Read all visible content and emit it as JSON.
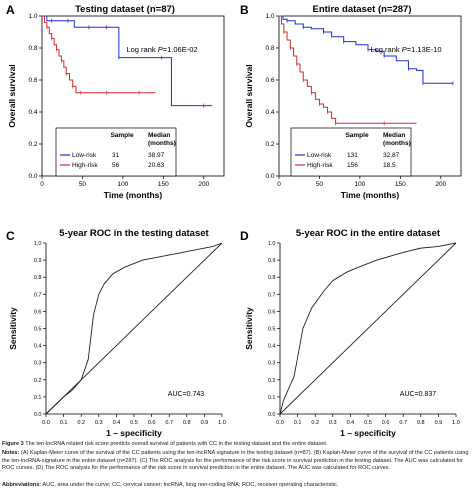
{
  "chart_data": [
    {
      "type": "line",
      "panel_label": "A",
      "title": "Testing dataset (n=87)",
      "xlabel": "Time (months)",
      "ylabel": "Overall survival",
      "xlim": [
        0,
        225
      ],
      "ylim": [
        0,
        1.0
      ],
      "xticks": [
        "0",
        "50",
        "100",
        "150",
        "200"
      ],
      "yticks": [
        "0.0",
        "0.2",
        "0.4",
        "0.6",
        "0.8",
        "1.0"
      ],
      "annotation": "Log rank P=1.06E-02",
      "table_headers": [
        "Sample",
        "Median (months)"
      ],
      "series": [
        {
          "name": "Low-risk",
          "color": "#1f2fd6",
          "sample": "31",
          "median": "38.97",
          "x": [
            0,
            6,
            12,
            20,
            32,
            40,
            58,
            70,
            80,
            92,
            95,
            120,
            148,
            160,
            200,
            210
          ],
          "y": [
            1.0,
            0.97,
            0.97,
            0.97,
            0.97,
            0.93,
            0.93,
            0.93,
            0.93,
            0.93,
            0.74,
            0.74,
            0.74,
            0.44,
            0.44,
            0.44
          ]
        },
        {
          "name": "High-risk",
          "color": "#d42b2b",
          "sample": "56",
          "median": "20.63",
          "x": [
            0,
            3,
            6,
            9,
            12,
            15,
            18,
            21,
            24,
            27,
            30,
            34,
            38,
            42,
            48,
            60,
            80,
            100,
            120,
            140
          ],
          "y": [
            1.0,
            0.96,
            0.93,
            0.89,
            0.86,
            0.82,
            0.79,
            0.75,
            0.72,
            0.68,
            0.64,
            0.6,
            0.56,
            0.52,
            0.52,
            0.52,
            0.52,
            0.52,
            0.52,
            0.52
          ]
        }
      ]
    },
    {
      "type": "line",
      "panel_label": "B",
      "title": "Entire dataset (n=287)",
      "xlabel": "Time (months)",
      "ylabel": "Overall survival",
      "xlim": [
        0,
        225
      ],
      "ylim": [
        0,
        1.0
      ],
      "xticks": [
        "0",
        "50",
        "100",
        "150",
        "200"
      ],
      "yticks": [
        "0.0",
        "0.2",
        "0.4",
        "0.6",
        "0.8",
        "1.0"
      ],
      "annotation": "Log rank P=1.13E-10",
      "table_headers": [
        "Sample",
        "Median (months)"
      ],
      "series": [
        {
          "name": "Low-risk",
          "color": "#1f2fd6",
          "sample": "131",
          "median": "32.87",
          "x": [
            0,
            5,
            10,
            20,
            30,
            40,
            55,
            65,
            80,
            95,
            110,
            120,
            130,
            145,
            160,
            170,
            178,
            210,
            215
          ],
          "y": [
            1.0,
            0.98,
            0.97,
            0.95,
            0.93,
            0.92,
            0.9,
            0.87,
            0.84,
            0.82,
            0.79,
            0.78,
            0.75,
            0.72,
            0.67,
            0.66,
            0.58,
            0.58,
            0.58
          ]
        },
        {
          "name": "High-risk",
          "color": "#d42b2b",
          "sample": "156",
          "median": "18.5",
          "x": [
            0,
            3,
            6,
            10,
            14,
            18,
            22,
            26,
            30,
            35,
            40,
            45,
            50,
            55,
            60,
            65,
            70,
            100,
            130,
            170
          ],
          "y": [
            1.0,
            0.95,
            0.9,
            0.85,
            0.8,
            0.75,
            0.7,
            0.65,
            0.6,
            0.56,
            0.52,
            0.48,
            0.45,
            0.43,
            0.4,
            0.36,
            0.33,
            0.33,
            0.33,
            0.33
          ]
        }
      ]
    },
    {
      "type": "line",
      "panel_label": "C",
      "title": "5-year ROC in the testing dataset",
      "xlabel": "1 – specificity",
      "ylabel": "Sensitivity",
      "xlim": [
        0,
        1.0
      ],
      "ylim": [
        0,
        1.0
      ],
      "xticks": [
        "0.0",
        "0.1",
        "0.2",
        "0.3",
        "0.4",
        "0.5",
        "0.6",
        "0.7",
        "0.8",
        "0.9",
        "1.0"
      ],
      "yticks": [
        "0.0",
        "0.1",
        "0.2",
        "0.3",
        "0.4",
        "0.5",
        "0.6",
        "0.7",
        "0.8",
        "0.9",
        "1.0"
      ],
      "annotation": "AUC=0.743",
      "series": [
        {
          "color": "#222222",
          "x": [
            0.0,
            0.03,
            0.06,
            0.1,
            0.15,
            0.2,
            0.24,
            0.27,
            0.3,
            0.33,
            0.38,
            0.45,
            0.55,
            0.65,
            0.75,
            0.85,
            0.95,
            1.0
          ],
          "y": [
            0.0,
            0.03,
            0.06,
            0.1,
            0.14,
            0.2,
            0.32,
            0.58,
            0.7,
            0.76,
            0.82,
            0.86,
            0.9,
            0.92,
            0.94,
            0.96,
            0.98,
            1.0
          ]
        },
        {
          "color": "#222222",
          "x": [
            0,
            1
          ],
          "y": [
            0,
            1
          ]
        }
      ]
    },
    {
      "type": "line",
      "panel_label": "D",
      "title": "5-year ROC in the entire dataset",
      "xlabel": "1 – specificity",
      "ylabel": "Sensitivity",
      "xlim": [
        0,
        1.0
      ],
      "ylim": [
        0,
        1.0
      ],
      "xticks": [
        "0.0",
        "0.1",
        "0.2",
        "0.3",
        "0.4",
        "0.5",
        "0.6",
        "0.7",
        "0.8",
        "0.9",
        "1.0"
      ],
      "yticks": [
        "0.0",
        "0.1",
        "0.2",
        "0.3",
        "0.4",
        "0.5",
        "0.6",
        "0.7",
        "0.8",
        "0.9",
        "1.0"
      ],
      "annotation": "AUC=0.837",
      "series": [
        {
          "color": "#222222",
          "x": [
            0.0,
            0.02,
            0.05,
            0.08,
            0.1,
            0.13,
            0.18,
            0.25,
            0.3,
            0.38,
            0.45,
            0.55,
            0.65,
            0.72,
            0.8,
            0.9,
            1.0
          ],
          "y": [
            0.0,
            0.08,
            0.15,
            0.22,
            0.33,
            0.5,
            0.62,
            0.72,
            0.78,
            0.83,
            0.86,
            0.9,
            0.93,
            0.95,
            0.97,
            0.98,
            1.0
          ]
        },
        {
          "color": "#222222",
          "x": [
            0,
            1
          ],
          "y": [
            0,
            1
          ]
        }
      ]
    }
  ],
  "caption": {
    "title_label": "Figure 3",
    "title_text": "The ten-lncRNA related risk score predicts overall survival of patients with CC in the testing dataset and the entire dataset.",
    "notes_label": "Notes:",
    "notes_text": "(A) Kaplan-Meier curve of the survival of the CC patients using the ten-lncRNA signature in the testing dataset (n=87). (B) Kaplan-Meier curve of the survival of the CC patients using the ten-lncRNA-signature in the entire dataset (n=287). (C) The ROC analysis for the performance of the risk score in survival prediction in the testing dataset. The AUC was calculated for ROC curves. (D) The ROC analysis for the performance of the risk score in survival prediction in the entire dataset. The AUC was calculated for ROC curves.",
    "abbr_label": "Abbreviations:",
    "abbr_text": "AUC, area under the curve; CC, cervical cancer; lncRNA, long non-coding RNA; ROC, receiver operating characteristic."
  }
}
